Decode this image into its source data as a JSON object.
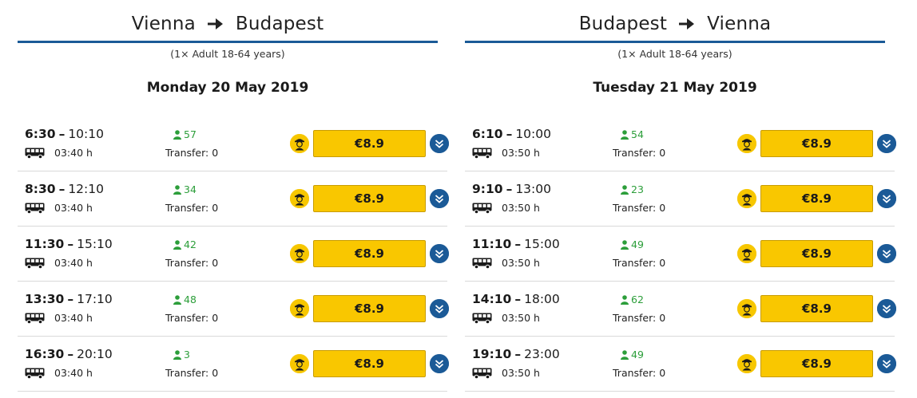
{
  "outbound": {
    "from": "Vienna",
    "to": "Budapest",
    "passengers": "(1× Adult 18-64 years)",
    "date": "Monday 20 May 2019",
    "connections": [
      {
        "departure": "6:30",
        "arrival": "10:10",
        "duration": "03:40 h",
        "seats": "57",
        "transfer": "Transfer: 0",
        "price": "€8.9"
      },
      {
        "departure": "8:30",
        "arrival": "12:10",
        "duration": "03:40 h",
        "seats": "34",
        "transfer": "Transfer: 0",
        "price": "€8.9"
      },
      {
        "departure": "11:30",
        "arrival": "15:10",
        "duration": "03:40 h",
        "seats": "42",
        "transfer": "Transfer: 0",
        "price": "€8.9"
      },
      {
        "departure": "13:30",
        "arrival": "17:10",
        "duration": "03:40 h",
        "seats": "48",
        "transfer": "Transfer: 0",
        "price": "€8.9"
      },
      {
        "departure": "16:30",
        "arrival": "20:10",
        "duration": "03:40 h",
        "seats": "3",
        "transfer": "Transfer: 0",
        "price": "€8.9"
      }
    ]
  },
  "return": {
    "from": "Budapest",
    "to": "Vienna",
    "passengers": "(1× Adult 18-64 years)",
    "date": "Tuesday 21 May 2019",
    "connections": [
      {
        "departure": "6:10",
        "arrival": "10:00",
        "duration": "03:50 h",
        "seats": "54",
        "transfer": "Transfer: 0",
        "price": "€8.9"
      },
      {
        "departure": "9:10",
        "arrival": "13:00",
        "duration": "03:50 h",
        "seats": "23",
        "transfer": "Transfer: 0",
        "price": "€8.9"
      },
      {
        "departure": "11:10",
        "arrival": "15:00",
        "duration": "03:50 h",
        "seats": "49",
        "transfer": "Transfer: 0",
        "price": "€8.9"
      },
      {
        "departure": "14:10",
        "arrival": "18:00",
        "duration": "03:50 h",
        "seats": "62",
        "transfer": "Transfer: 0",
        "price": "€8.9"
      },
      {
        "departure": "19:10",
        "arrival": "23:00",
        "duration": "03:50 h",
        "seats": "49",
        "transfer": "Transfer: 0",
        "price": "€8.9"
      }
    ]
  },
  "icons": {
    "route_arrow": "arrow-right-icon",
    "bus": "bus-icon",
    "seats": "person-icon",
    "driver": "driver-icon",
    "expand": "chevron-double-down-icon"
  },
  "colors": {
    "accent_blue": "#1b5a97",
    "price_yellow": "#f9c700",
    "seats_green": "#2c9e3a"
  }
}
